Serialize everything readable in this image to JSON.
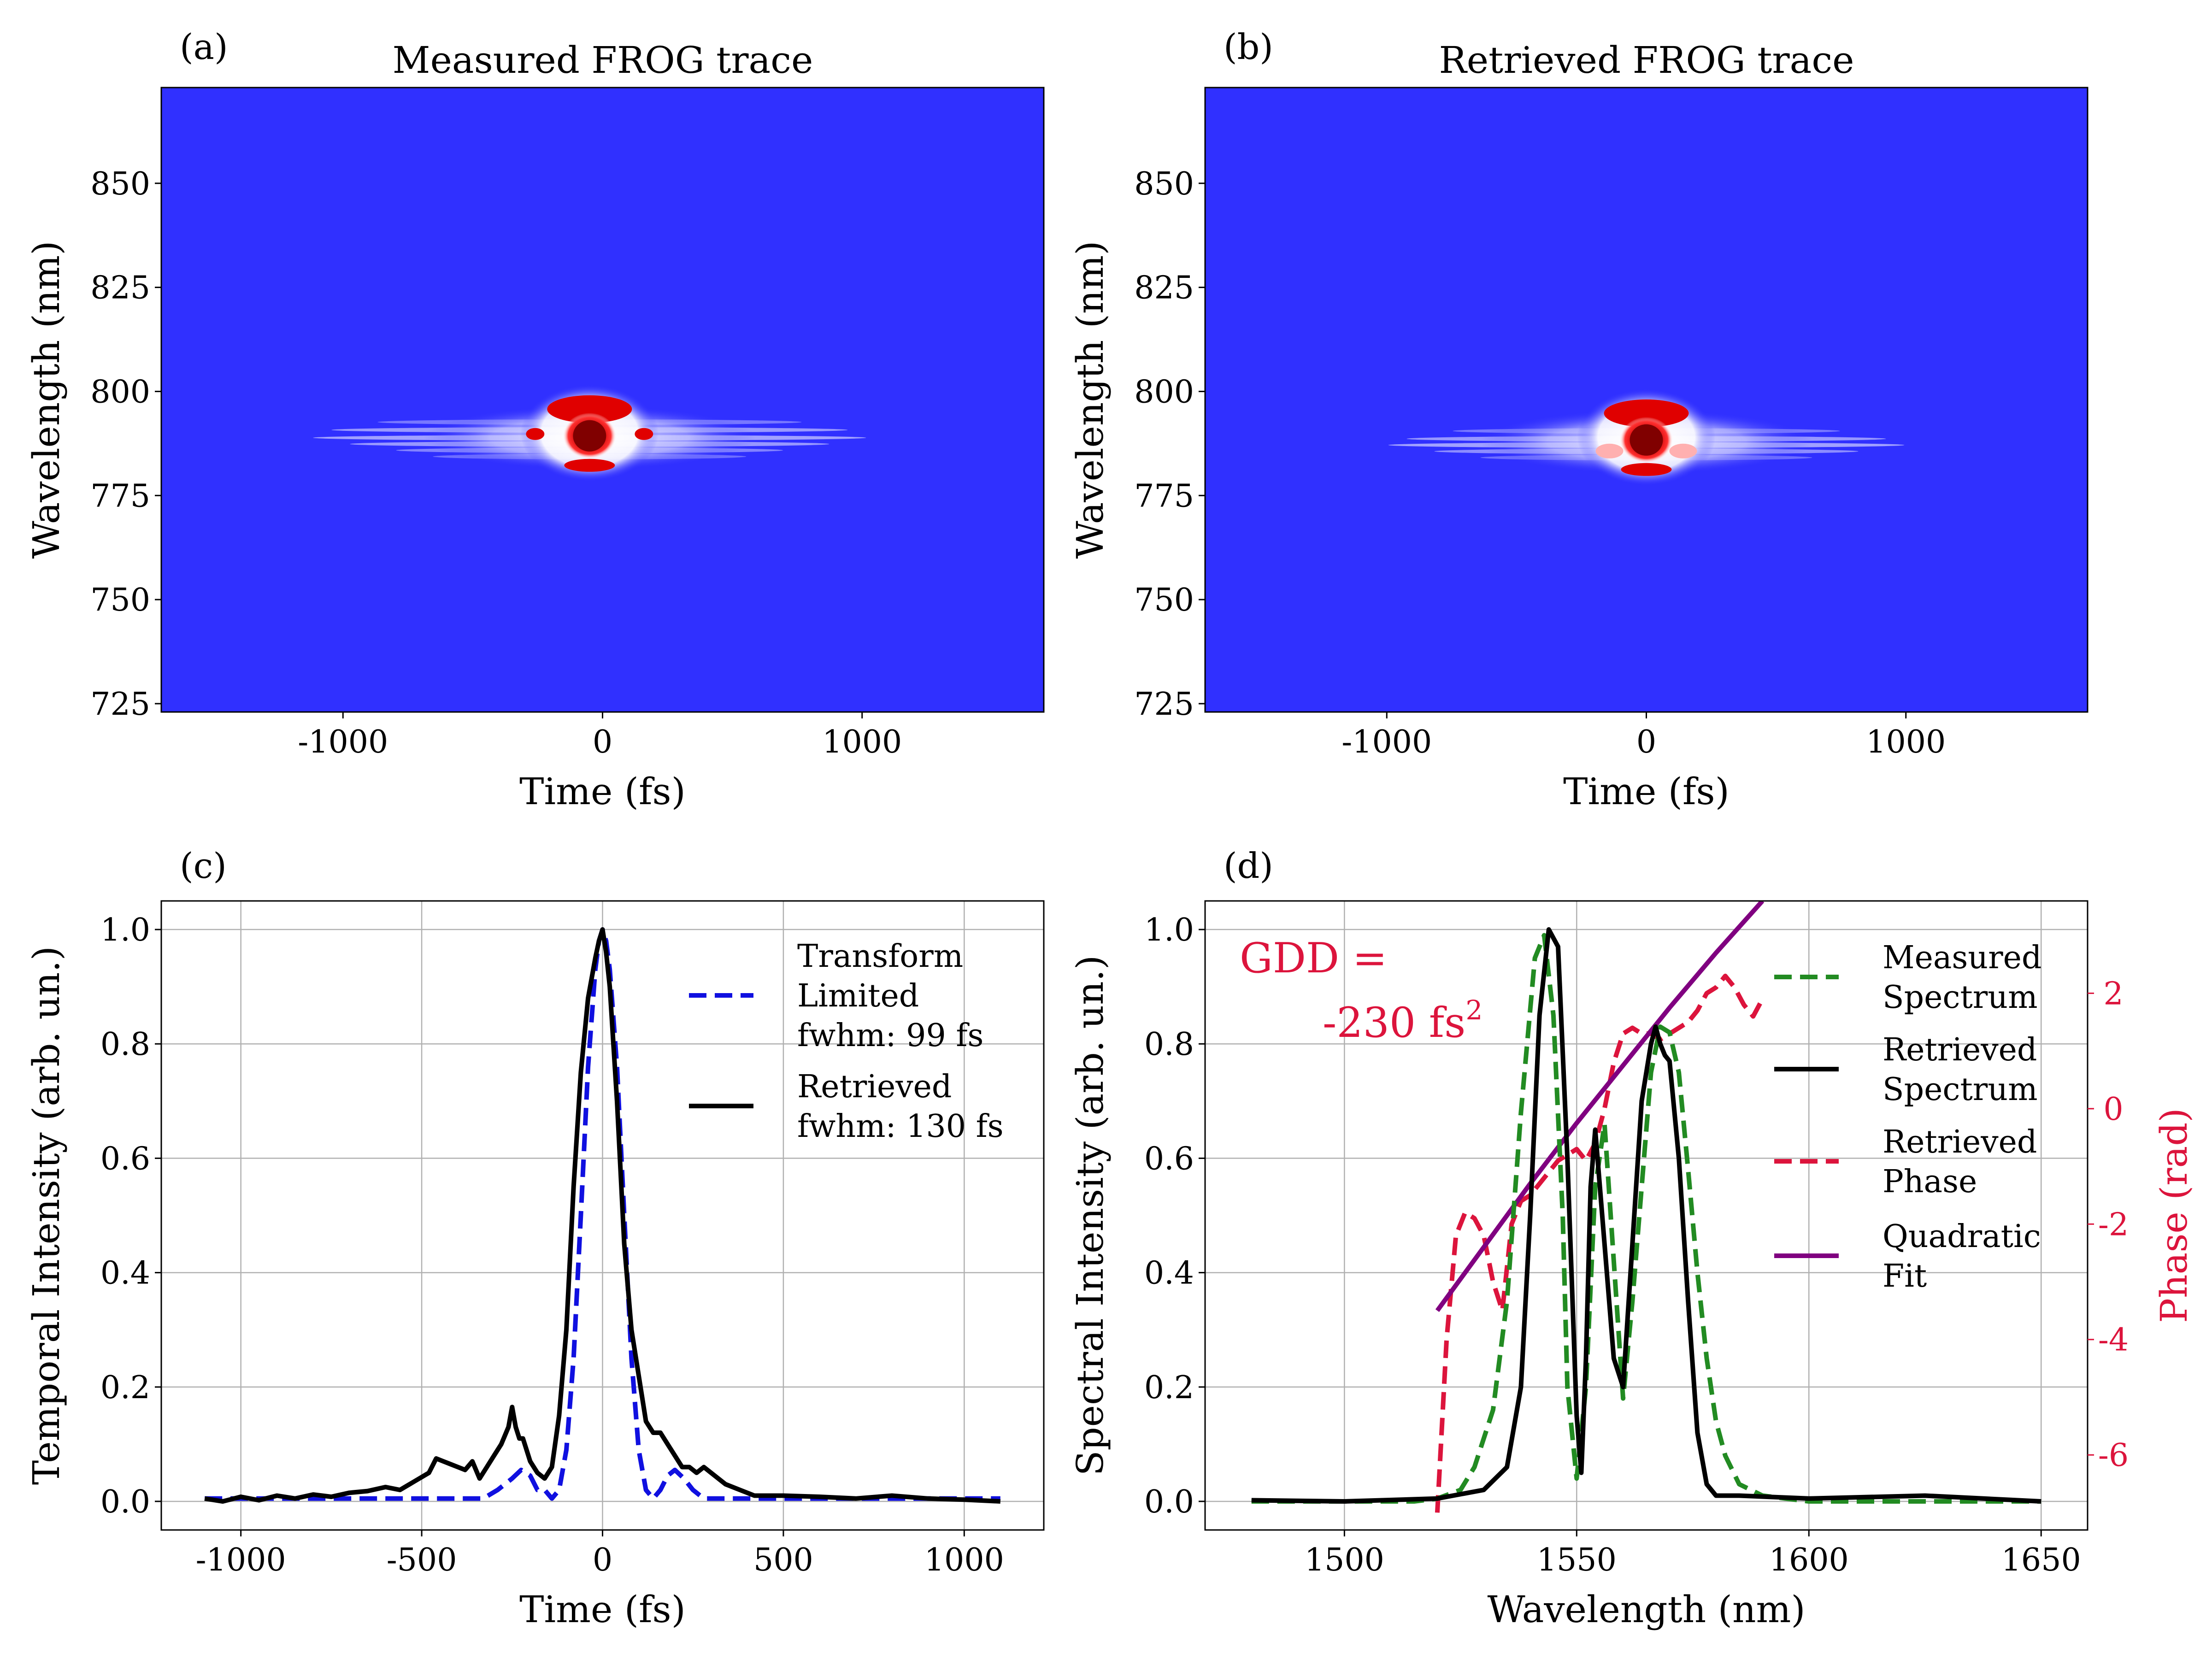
{
  "panels": {
    "a": {
      "label": "(a)",
      "title": "Measured FROG trace"
    },
    "b": {
      "label": "(b)",
      "title": "Retrieved FROG trace"
    },
    "c": {
      "label": "(c)"
    },
    "d": {
      "label": "(d)"
    }
  },
  "annotation_d": {
    "line1": "GDD =",
    "line2": "-230 fs",
    "sup": "2"
  },
  "colors": {
    "bg_blue": "#3030ff",
    "red": "#e00000",
    "dark_red": "#800000",
    "blue_dash": "#1010e0",
    "green_dash": "#228b22",
    "crimson": "#dc143c",
    "purple": "#800080"
  },
  "chart_data": [
    {
      "type": "heatmap",
      "panel": "a",
      "title": "Measured FROG trace",
      "xlabel": "Time (fs)",
      "ylabel": "Wavelength (nm)",
      "xlim": [
        -1700,
        1700
      ],
      "ylim": [
        723,
        873
      ],
      "xticks": [
        -1000,
        0,
        1000
      ],
      "yticks": [
        725,
        750,
        775,
        800,
        825,
        850
      ],
      "xtick_labels": [
        "-1000",
        "0",
        "1000"
      ],
      "ytick_labels": [
        "725",
        "750",
        "775",
        "800",
        "825",
        "850"
      ],
      "peak": {
        "time_fs": -50,
        "wavelength_nm": 790
      },
      "colormap": "bwr"
    },
    {
      "type": "heatmap",
      "panel": "b",
      "title": "Retrieved FROG trace",
      "xlabel": "Time (fs)",
      "ylabel": "Wavelength (nm)",
      "xlim": [
        -1700,
        1700
      ],
      "ylim": [
        723,
        873
      ],
      "xticks": [
        -1000,
        0,
        1000
      ],
      "yticks": [
        725,
        750,
        775,
        800,
        825,
        850
      ],
      "xtick_labels": [
        "-1000",
        "0",
        "1000"
      ],
      "ytick_labels": [
        "725",
        "750",
        "775",
        "800",
        "825",
        "850"
      ],
      "peak": {
        "time_fs": 0,
        "wavelength_nm": 789
      },
      "colormap": "bwr"
    },
    {
      "type": "line",
      "panel": "c",
      "xlabel": "Time (fs)",
      "ylabel": "Temporal Intensity (arb. un.)",
      "xlim": [
        -1220,
        1220
      ],
      "ylim": [
        -0.05,
        1.05
      ],
      "xticks": [
        -1000,
        -500,
        0,
        500,
        1000
      ],
      "yticks": [
        0,
        0.2,
        0.4,
        0.6,
        0.8,
        1.0
      ],
      "xtick_labels": [
        "-1000",
        "-500",
        "0",
        "500",
        "1000"
      ],
      "ytick_labels": [
        "0.0",
        "0.2",
        "0.4",
        "0.6",
        "0.8",
        "1.0"
      ],
      "grid": true,
      "legend": "top-right",
      "series": [
        {
          "name": "Transform Limited fwhm: 99 fs",
          "legend_lines": [
            "Transform",
            "Limited",
            "fwhm: 99 fs"
          ],
          "style": "dashed",
          "color": "#1010e0",
          "x": [
            -1100,
            -900,
            -700,
            -500,
            -400,
            -330,
            -290,
            -250,
            -225,
            -200,
            -180,
            -160,
            -140,
            -120,
            -100,
            -80,
            -60,
            -40,
            -20,
            -10,
            0,
            10,
            20,
            40,
            60,
            80,
            100,
            120,
            140,
            160,
            180,
            200,
            225,
            250,
            280,
            320,
            400,
            600,
            800,
            1100
          ],
          "y": [
            0.005,
            0.005,
            0.005,
            0.005,
            0.005,
            0.005,
            0.02,
            0.04,
            0.055,
            0.045,
            0.02,
            0.02,
            0.005,
            0.02,
            0.09,
            0.25,
            0.5,
            0.76,
            0.93,
            0.98,
            1.0,
            0.98,
            0.93,
            0.76,
            0.5,
            0.25,
            0.09,
            0.02,
            0.005,
            0.02,
            0.045,
            0.055,
            0.04,
            0.02,
            0.005,
            0.005,
            0.005,
            0.005,
            0.005,
            0.005
          ]
        },
        {
          "name": "Retrieved fwhm: 130 fs",
          "legend_lines": [
            "Retrieved",
            "fwhm: 130 fs"
          ],
          "style": "solid",
          "color": "#000000",
          "x": [
            -1100,
            -1050,
            -1000,
            -950,
            -900,
            -850,
            -800,
            -750,
            -700,
            -650,
            -600,
            -560,
            -520,
            -480,
            -460,
            -440,
            -420,
            -400,
            -380,
            -360,
            -340,
            -320,
            -300,
            -280,
            -260,
            -250,
            -240,
            -230,
            -220,
            -200,
            -180,
            -160,
            -140,
            -120,
            -100,
            -80,
            -60,
            -40,
            -20,
            -10,
            0,
            10,
            20,
            40,
            60,
            80,
            100,
            120,
            140,
            160,
            180,
            200,
            220,
            240,
            260,
            280,
            300,
            340,
            380,
            420,
            500,
            600,
            700,
            800,
            900,
            1000,
            1100
          ],
          "y": [
            0.005,
            0.0,
            0.008,
            0.002,
            0.01,
            0.005,
            0.012,
            0.008,
            0.015,
            0.018,
            0.025,
            0.02,
            0.035,
            0.05,
            0.075,
            0.07,
            0.065,
            0.06,
            0.055,
            0.07,
            0.04,
            0.06,
            0.08,
            0.1,
            0.13,
            0.165,
            0.13,
            0.11,
            0.11,
            0.07,
            0.05,
            0.04,
            0.06,
            0.15,
            0.3,
            0.55,
            0.75,
            0.88,
            0.95,
            0.98,
            1.0,
            0.96,
            0.9,
            0.7,
            0.45,
            0.3,
            0.22,
            0.14,
            0.12,
            0.12,
            0.1,
            0.08,
            0.06,
            0.06,
            0.05,
            0.06,
            0.05,
            0.03,
            0.02,
            0.01,
            0.01,
            0.008,
            0.005,
            0.01,
            0.005,
            0.003,
            0.0
          ]
        }
      ]
    },
    {
      "type": "line",
      "panel": "d",
      "xlabel": "Wavelength (nm)",
      "ylabel": "Spectral Intensity (arb. un.)",
      "y2label": "Phase (rad)",
      "xlim": [
        1470,
        1660
      ],
      "ylim": [
        -0.05,
        1.05
      ],
      "y2lim": [
        -7.3,
        3.6
      ],
      "xticks": [
        1500,
        1550,
        1600,
        1650
      ],
      "yticks": [
        0,
        0.2,
        0.4,
        0.6,
        0.8,
        1.0
      ],
      "y2ticks": [
        -6,
        -4,
        -2,
        0,
        2
      ],
      "xtick_labels": [
        "1500",
        "1550",
        "1600",
        "1650"
      ],
      "ytick_labels": [
        "0.0",
        "0.2",
        "0.4",
        "0.6",
        "0.8",
        "1.0"
      ],
      "y2tick_labels": [
        "-6",
        "-4",
        "-2",
        "0",
        "2"
      ],
      "grid": true,
      "legend": "top-right",
      "series": [
        {
          "name": "Measured Spectrum",
          "legend_lines": [
            "Measured",
            "Spectrum"
          ],
          "axis": "left",
          "style": "dashed",
          "color": "#228b22",
          "x": [
            1480,
            1500,
            1515,
            1520,
            1525,
            1528,
            1532,
            1535,
            1538,
            1541,
            1543,
            1545,
            1547,
            1548,
            1550,
            1552,
            1554,
            1556,
            1558,
            1560,
            1562,
            1564,
            1566,
            1568,
            1570,
            1572,
            1574,
            1576,
            1578,
            1580,
            1582,
            1585,
            1590,
            1600,
            1620,
            1650
          ],
          "y": [
            0.0,
            0.0,
            0.0,
            0.005,
            0.02,
            0.06,
            0.16,
            0.35,
            0.68,
            0.95,
            0.99,
            0.85,
            0.5,
            0.2,
            0.04,
            0.2,
            0.55,
            0.66,
            0.42,
            0.18,
            0.35,
            0.55,
            0.75,
            0.83,
            0.82,
            0.75,
            0.58,
            0.4,
            0.25,
            0.14,
            0.08,
            0.03,
            0.01,
            0.0,
            0.0,
            0.0
          ]
        },
        {
          "name": "Retrieved Spectrum",
          "legend_lines": [
            "Retrieved",
            "Spectrum"
          ],
          "axis": "left",
          "style": "solid",
          "color": "#000000",
          "x": [
            1480,
            1500,
            1520,
            1530,
            1535,
            1538,
            1540,
            1542,
            1544,
            1546,
            1548,
            1550,
            1551,
            1552,
            1553,
            1554,
            1556,
            1558,
            1560,
            1562,
            1564,
            1566,
            1567,
            1568,
            1569,
            1570,
            1572,
            1574,
            1576,
            1578,
            1580,
            1585,
            1600,
            1625,
            1650
          ],
          "y": [
            0.002,
            0.0,
            0.005,
            0.02,
            0.06,
            0.2,
            0.5,
            0.85,
            1.0,
            0.97,
            0.6,
            0.15,
            0.05,
            0.25,
            0.55,
            0.65,
            0.45,
            0.25,
            0.2,
            0.45,
            0.7,
            0.8,
            0.83,
            0.8,
            0.78,
            0.77,
            0.6,
            0.35,
            0.12,
            0.03,
            0.01,
            0.01,
            0.005,
            0.01,
            0.0
          ]
        },
        {
          "name": "Retrieved Phase",
          "legend_lines": [
            "Retrieved",
            "Phase"
          ],
          "axis": "right",
          "style": "dashed",
          "color": "#dc143c",
          "x": [
            1520,
            1522,
            1524,
            1526,
            1528,
            1530,
            1532,
            1534,
            1536,
            1538,
            1540,
            1542,
            1544,
            1546,
            1548,
            1550,
            1552,
            1554,
            1556,
            1558,
            1560,
            1562,
            1564,
            1566,
            1568,
            1570,
            1572,
            1574,
            1576,
            1578,
            1580,
            1582,
            1584,
            1586,
            1588,
            1590
          ],
          "y": [
            -7.0,
            -4.0,
            -2.2,
            -1.8,
            -1.9,
            -2.2,
            -3.0,
            -3.5,
            -2.0,
            -1.6,
            -1.5,
            -1.3,
            -1.1,
            -0.9,
            -0.8,
            -0.7,
            -0.9,
            -0.6,
            0.0,
            0.8,
            1.3,
            1.4,
            1.3,
            1.3,
            1.2,
            1.3,
            1.4,
            1.5,
            1.7,
            2.0,
            2.1,
            2.3,
            2.1,
            1.8,
            1.6,
            1.9
          ]
        },
        {
          "name": "Quadratic Fit",
          "legend_lines": [
            "Quadratic",
            "Fit"
          ],
          "axis": "right",
          "style": "solid",
          "color": "#800080",
          "x": [
            1520,
            1530,
            1540,
            1550,
            1560,
            1570,
            1580,
            1590
          ],
          "y": [
            -3.5,
            -2.4,
            -1.3,
            -0.25,
            0.75,
            1.75,
            2.7,
            3.6
          ]
        }
      ]
    }
  ]
}
